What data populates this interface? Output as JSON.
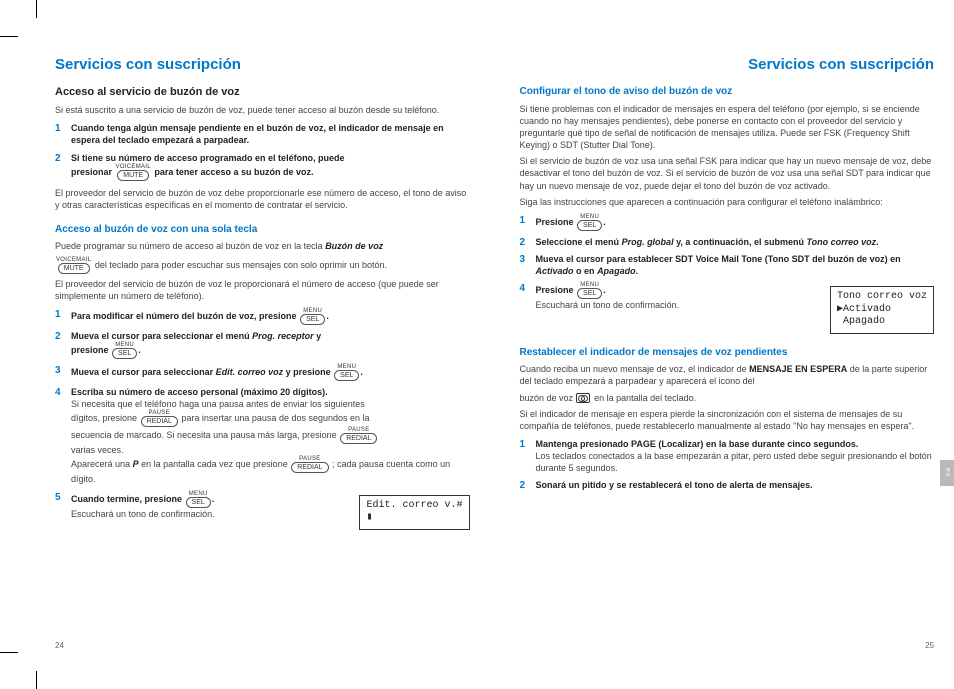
{
  "colors": {
    "accent": "#0077c8",
    "text": "#444444",
    "heading": "#222222",
    "tab_bg": "#b9b9b9"
  },
  "left": {
    "title": "Servicios con suscripción",
    "section1_title": "Acceso al servicio de buzón de voz",
    "section1_intro": "Si está suscrito a una servicio de buzón de voz, puede tener acceso al buzón desde su teléfono.",
    "s1_step1": "Cuando tenga algún mensaje pendiente en el buzón de voz, el indicador de mensaje en espera del teclado empezará a parpadear.",
    "s1_step2a": "Si tiene su número de acceso programado en el teléfono, puede",
    "s1_step2b": "presionar",
    "s1_step2c": "para tener acceso a su buzón de voz.",
    "s1_para": "El proveedor del servicio de buzón de voz debe proporcionarle ese número de acceso, el tono de aviso y otras características específicas en el momento de contratar el servicio.",
    "sub1_title": "Acceso al buzón de voz con una sola tecla",
    "sub1_p1a": "Puede programar su número de acceso al buzón de voz en la tecla",
    "sub1_p1b": "Buzón de voz",
    "sub1_p1c": "del teclado para poder escuchar sus mensajes con solo oprimir un botón.",
    "sub1_p2": "El proveedor del servicio de buzón de voz le proporcionará el número de acceso (que puede ser simplemente un número de teléfono).",
    "sub1_step1": "Para modificar el número del buzón de voz, presione",
    "sub1_step2a": "Mueva el cursor para seleccionar el menú",
    "sub1_step2b": "Prog. receptor",
    "sub1_step2c": "y",
    "sub1_step2d": "presione",
    "sub1_step3a": "Mueva el cursor para seleccionar",
    "sub1_step3b": "Edit. correo voz",
    "sub1_step3c": "y presione",
    "sub1_step4_title": "Escriba su número de acceso personal (máximo 20 dígitos).",
    "sub1_step4_a": "Si necesita que el teléfono haga una pausa antes de enviar los siguientes",
    "sub1_step4_b": "dígitos, presione",
    "sub1_step4_c": "para insertar una pausa de dos segundos en la",
    "sub1_step4_d": "secuencia de marcado. Si necesita una pausa más larga, presione",
    "sub1_step4_e": "varias veces.",
    "sub1_step4_f": "Aparecerá una",
    "sub1_step4_g": "P",
    "sub1_step4_h": "en la pantalla cada vez que presione",
    "sub1_step4_i": "; cada pausa cuenta como un dígito.",
    "sub1_step5a": "Cuando termine, presione",
    "sub1_step5b": "Escuchará un tono de confirmación.",
    "lcd": "Edit. correo v.#\n▮",
    "page_num": "24",
    "key_voicemail": "VOICEMAIL",
    "key_mute": "MUTE",
    "key_menu": "MENU",
    "key_sel": "SEL",
    "key_pause": "PAUSE",
    "key_redial": "REDIAL"
  },
  "right": {
    "title": "Servicios con suscripción",
    "sub1_title": "Configurar el tono de aviso del buzón de voz",
    "sub1_p1": "Si tiene problemas con el indicador de mensajes en espera del teléfono (por ejemplo, si se enciende cuando no hay mensajes pendientes), debe ponerse en contacto con el proveedor del servicio y preguntarle qué tipo de señal de notificación de mensajes utiliza. Puede ser FSK (Frequency Shift Keying) o SDT (Stutter Dial Tone).",
    "sub1_p2": "Si el servicio de buzón de voz usa una señal FSK para indicar que hay un nuevo mensaje de voz, debe desactivar el tono del buzón de voz. Si el servicio de buzón de voz usa una señal SDT para indicar que hay un nuevo mensaje de voz, puede dejar el tono del buzón de voz activado.",
    "sub1_p3": "Siga las instrucciones que aparecen a continuación para configurar el teléfono inalámbrico:",
    "r_step1": "Presione",
    "r_step2a": "Seleccione el menú",
    "r_step2b": "Prog. global",
    "r_step2c": "y, a continuación, el submenú",
    "r_step2d": "Tono correo voz",
    "r_step3a": "Mueva el cursor para establecer SDT Voice Mail Tone (Tono SDT del buzón de voz) en",
    "r_step3b": "Activado",
    "r_step3c": "o en",
    "r_step3d": "Apagado",
    "r_step4a": "Presione",
    "r_step4b": "Escuchará un tono de confirmación.",
    "lcd": "Tono correo voz\n▶Activado\n Apagado",
    "sub2_title": "Restablecer el indicador de mensajes de voz pendientes",
    "sub2_p1a": "Cuando reciba un nuevo mensaje de voz, el indicador de",
    "sub2_p1b": "MENSAJE EN ESPERA",
    "sub2_p1c": "de la parte superior del teclado empezará a parpadear y aparecerá el icono del",
    "sub2_p1d": "buzón de voz",
    "sub2_p1e": "en la pantalla del teclado.",
    "sub2_p2": "Si el indicador de mensaje en espera pierde la sincronización con el sistema de mensajes de su compañía de teléfonos, puede restablecerlo manualmente al estado \"No hay mensajes en espera\".",
    "r2_step1a": "Mantenga presionado PAGE (Localizar) en la base durante cinco segundos.",
    "r2_step1b": "Los teclados conectados a la base empezarán a pitar, pero usted debe seguir presionando el botón durante 5 segundos.",
    "r2_step2": "Sonará un pitido y se restablecerá el tono de alerta de mensajes.",
    "page_num": "25",
    "tab": "es"
  }
}
